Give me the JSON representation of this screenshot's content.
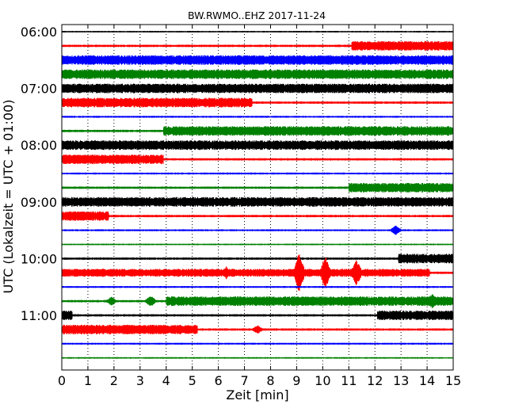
{
  "chart_data": {
    "type": "line",
    "title": "BW.RWMO..EHZ 2017-11-24",
    "xlabel": "Zeit  [min]",
    "ylabel": "UTC (Lokalzeit = UTC + 01:00)",
    "xlim": [
      0,
      15
    ],
    "x_ticks": [
      "0",
      "1",
      "2",
      "3",
      "4",
      "5",
      "6",
      "7",
      "8",
      "9",
      "10",
      "11",
      "12",
      "13",
      "14",
      "15"
    ],
    "y_ticks": [
      "06:00",
      "07:00",
      "08:00",
      "09:00",
      "10:00",
      "11:00"
    ],
    "grid": true,
    "trace_interval_min": 15,
    "colors": [
      "#000000",
      "#ff0000",
      "#0000ff",
      "#008000"
    ],
    "traces": [
      {
        "start": "06:00",
        "color": "black",
        "base_amplitude": 1,
        "segments": []
      },
      {
        "start": "06:15",
        "color": "red",
        "base_amplitude": 1.5,
        "segments": [
          {
            "from": 11.1,
            "to": 15,
            "amplitude": 6
          }
        ]
      },
      {
        "start": "06:30",
        "color": "blue",
        "base_amplitude": 6,
        "segments": []
      },
      {
        "start": "06:45",
        "color": "green",
        "base_amplitude": 6,
        "segments": []
      },
      {
        "start": "07:00",
        "color": "black",
        "base_amplitude": 6,
        "segments": []
      },
      {
        "start": "07:15",
        "color": "red",
        "base_amplitude": 1.5,
        "segments": [
          {
            "from": 0,
            "to": 7.3,
            "amplitude": 6
          }
        ]
      },
      {
        "start": "07:30",
        "color": "blue",
        "base_amplitude": 1.2,
        "segments": []
      },
      {
        "start": "07:45",
        "color": "green",
        "base_amplitude": 1.5,
        "segments": [
          {
            "from": 3.9,
            "to": 15,
            "amplitude": 6
          }
        ]
      },
      {
        "start": "08:00",
        "color": "black",
        "base_amplitude": 6,
        "segments": []
      },
      {
        "start": "08:15",
        "color": "red",
        "base_amplitude": 1.5,
        "segments": [
          {
            "from": 0,
            "to": 3.9,
            "amplitude": 6
          }
        ]
      },
      {
        "start": "08:30",
        "color": "blue",
        "base_amplitude": 1.2,
        "segments": []
      },
      {
        "start": "08:45",
        "color": "green",
        "base_amplitude": 1.5,
        "segments": [
          {
            "from": 11.0,
            "to": 15,
            "amplitude": 6
          }
        ]
      },
      {
        "start": "09:00",
        "color": "black",
        "base_amplitude": 6,
        "segments": []
      },
      {
        "start": "09:15",
        "color": "red",
        "base_amplitude": 1.5,
        "segments": [
          {
            "from": 0,
            "to": 1.8,
            "amplitude": 6
          }
        ]
      },
      {
        "start": "09:30",
        "color": "blue",
        "base_amplitude": 1.2,
        "segments": [],
        "spikes": [
          {
            "at": 12.8,
            "amplitude": 7
          }
        ]
      },
      {
        "start": "09:45",
        "color": "green",
        "base_amplitude": 1,
        "segments": []
      },
      {
        "start": "10:00",
        "color": "black",
        "base_amplitude": 1.5,
        "segments": [
          {
            "from": 12.9,
            "to": 15,
            "amplitude": 6
          }
        ]
      },
      {
        "start": "10:15",
        "color": "red",
        "base_amplitude": 1.5,
        "segments": [
          {
            "from": 0,
            "to": 14.1,
            "amplitude": 5
          }
        ],
        "spikes": [
          {
            "at": 6.3,
            "amplitude": 9
          },
          {
            "at": 9.1,
            "amplitude": 26
          },
          {
            "at": 10.1,
            "amplitude": 22
          },
          {
            "at": 11.3,
            "amplitude": 18
          }
        ]
      },
      {
        "start": "10:30",
        "color": "blue",
        "base_amplitude": 1.2,
        "segments": []
      },
      {
        "start": "10:45",
        "color": "green",
        "base_amplitude": 1.5,
        "segments": [
          {
            "from": 4.0,
            "to": 15,
            "amplitude": 6
          }
        ],
        "spikes": [
          {
            "at": 1.9,
            "amplitude": 6
          },
          {
            "at": 3.4,
            "amplitude": 8
          },
          {
            "at": 14.2,
            "amplitude": 10
          }
        ]
      },
      {
        "start": "11:00",
        "color": "black",
        "base_amplitude": 1.5,
        "segments": [
          {
            "from": 0,
            "to": 0.4,
            "amplitude": 6
          },
          {
            "from": 12.1,
            "to": 15,
            "amplitude": 6
          }
        ]
      },
      {
        "start": "11:15",
        "color": "red",
        "base_amplitude": 1.5,
        "segments": [
          {
            "from": 0,
            "to": 5.2,
            "amplitude": 6
          }
        ],
        "spikes": [
          {
            "at": 7.5,
            "amplitude": 6
          }
        ]
      },
      {
        "start": "11:30",
        "color": "blue",
        "base_amplitude": 1.2,
        "segments": []
      },
      {
        "start": "11:45",
        "color": "green",
        "base_amplitude": 1,
        "segments": []
      }
    ]
  }
}
